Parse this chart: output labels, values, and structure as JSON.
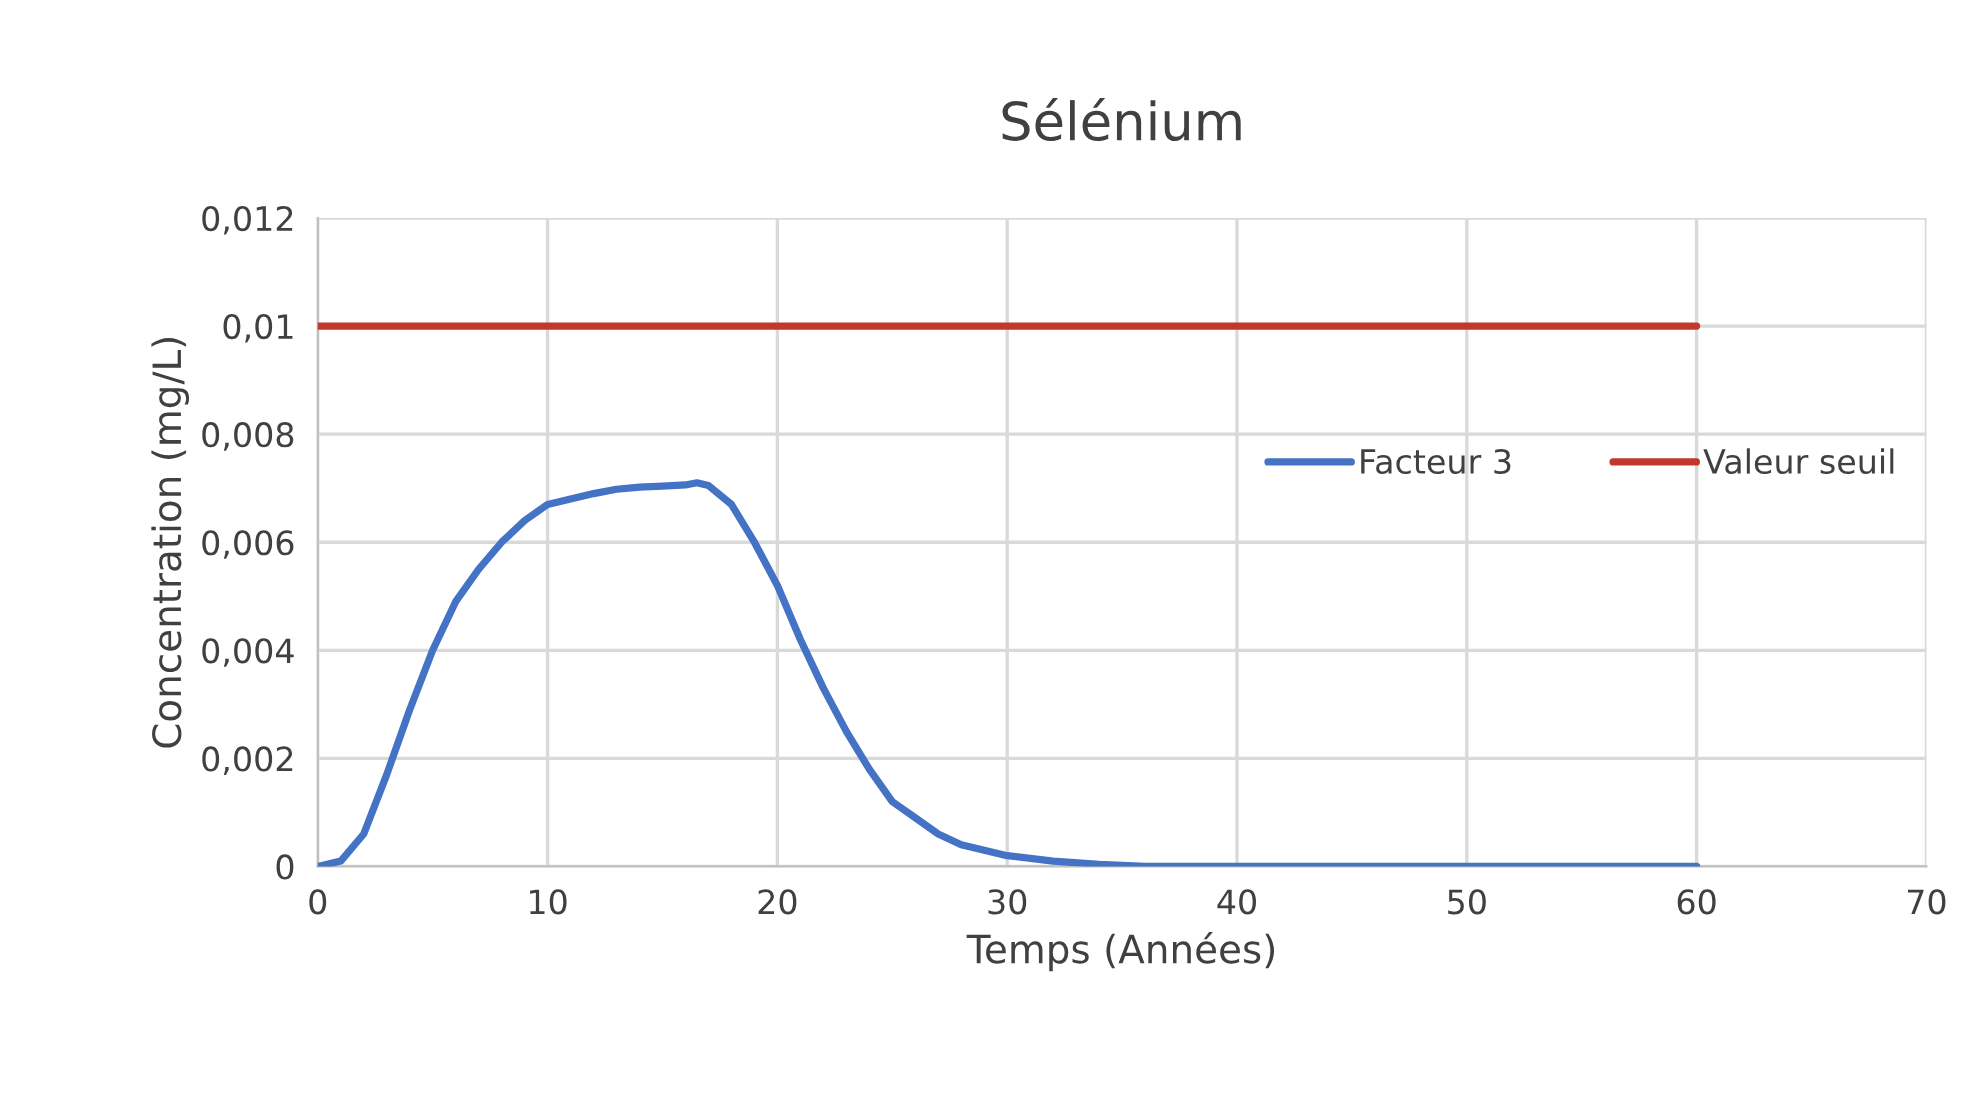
{
  "chart_data": {
    "type": "line",
    "title": "Sélénium",
    "xlabel": "Temps (Années)",
    "ylabel": "Concentration (mg/L)",
    "xlim": [
      0,
      70
    ],
    "xticks": [
      0,
      10,
      20,
      30,
      40,
      50,
      60,
      70
    ],
    "ylim": [
      0,
      0.012
    ],
    "yticks": [
      {
        "value": 0,
        "label": "0"
      },
      {
        "value": 0.002,
        "label": "0,002"
      },
      {
        "value": 0.004,
        "label": "0,004"
      },
      {
        "value": 0.006,
        "label": "0,006"
      },
      {
        "value": 0.008,
        "label": "0,008"
      },
      {
        "value": 0.01,
        "label": "0,01"
      },
      {
        "value": 0.012,
        "label": "0,012"
      }
    ],
    "grid": true,
    "legend": "right",
    "marker": "none",
    "line_style": "solid",
    "series": [
      {
        "name": "Facteur 3",
        "color": "#4472c4",
        "x": [
          0,
          1,
          2,
          3,
          4,
          5,
          6,
          7,
          8,
          9,
          10,
          11,
          12,
          13,
          14,
          15,
          16,
          16.5,
          17,
          18,
          19,
          20,
          21,
          22,
          23,
          24,
          25,
          26,
          27,
          28,
          29,
          30,
          32,
          34,
          36,
          40,
          50,
          60
        ],
        "values": [
          0,
          0.0001,
          0.0006,
          0.0017,
          0.0029,
          0.004,
          0.0049,
          0.0055,
          0.006,
          0.0064,
          0.0067,
          0.0068,
          0.0069,
          0.00698,
          0.00702,
          0.00704,
          0.00706,
          0.0071,
          0.00705,
          0.0067,
          0.006,
          0.0052,
          0.0042,
          0.0033,
          0.0025,
          0.0018,
          0.0012,
          0.0009,
          0.0006,
          0.0004,
          0.0003,
          0.0002,
          0.0001,
          4e-05,
          0,
          0,
          0,
          0
        ]
      },
      {
        "name": "Valeur seuil",
        "color": "#c0392b",
        "x": [
          0,
          60
        ],
        "values": [
          0.01,
          0.01
        ]
      }
    ]
  }
}
